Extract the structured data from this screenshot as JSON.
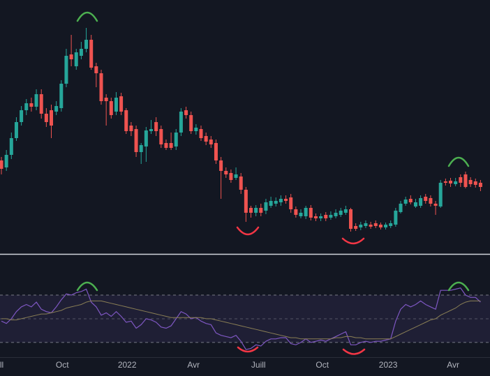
{
  "chart_data": [
    {
      "type": "candlestick",
      "xlim": [
        -0.28,
        97.9
      ],
      "ylim": [
        0,
        363
      ],
      "up_color": "#26a69a",
      "down_color": "#ef5350",
      "open": [
        133,
        123,
        141,
        165,
        188,
        205,
        215,
        210,
        228,
        200,
        205,
        203,
        208,
        243,
        285,
        268,
        283,
        293,
        306,
        268,
        258,
        223,
        218,
        203,
        225,
        205,
        183,
        178,
        145,
        153,
        175,
        188,
        178,
        158,
        158,
        153,
        173,
        205,
        198,
        175,
        178,
        168,
        163,
        158,
        133,
        118,
        115,
        108,
        110,
        91,
        65,
        58,
        65,
        61,
        68,
        71,
        73,
        78,
        80,
        63,
        53,
        53,
        65,
        53,
        50,
        55,
        51,
        53,
        55,
        58,
        63,
        39,
        37,
        39,
        41,
        43,
        41,
        37,
        39,
        41,
        59,
        71,
        78,
        67,
        68,
        81,
        79,
        71,
        67,
        103,
        104,
        99,
        109,
        113,
        105,
        103,
        101
      ],
      "high": [
        138,
        148,
        173,
        195,
        211,
        221,
        223,
        235,
        235,
        208,
        213,
        218,
        248,
        293,
        313,
        293,
        303,
        323,
        313,
        273,
        263,
        228,
        223,
        231,
        230,
        208,
        188,
        183,
        158,
        181,
        191,
        195,
        183,
        163,
        173,
        178,
        208,
        210,
        203,
        185,
        183,
        173,
        168,
        163,
        138,
        123,
        120,
        123,
        115,
        95,
        68,
        69,
        71,
        78,
        81,
        80,
        83,
        83,
        85,
        67,
        63,
        68,
        69,
        57,
        57,
        59,
        60,
        63,
        65,
        68,
        65,
        43,
        45,
        47,
        45,
        47,
        44,
        44,
        47,
        65,
        75,
        81,
        83,
        78,
        83,
        85,
        83,
        75,
        105,
        107,
        108,
        108,
        113,
        117,
        109,
        107,
        105
      ],
      "low": [
        113,
        118,
        135,
        161,
        183,
        198,
        203,
        205,
        193,
        181,
        165,
        198,
        203,
        238,
        268,
        263,
        278,
        288,
        263,
        238,
        213,
        183,
        193,
        198,
        198,
        171,
        168,
        138,
        128,
        131,
        171,
        168,
        151,
        148,
        148,
        148,
        168,
        193,
        171,
        170,
        161,
        155,
        151,
        128,
        78,
        108,
        101,
        105,
        85,
        45,
        51,
        53,
        53,
        56,
        65,
        67,
        68,
        71,
        58,
        51,
        50,
        49,
        47,
        46,
        46,
        46,
        48,
        50,
        52,
        55,
        31,
        32,
        33,
        36,
        35,
        36,
        34,
        34,
        36,
        38,
        57,
        68,
        70,
        65,
        65,
        71,
        67,
        55,
        65,
        97,
        95,
        96,
        95,
        93,
        95,
        94,
        89
      ],
      "close": [
        121,
        141,
        165,
        188,
        205,
        215,
        210,
        228,
        200,
        188,
        183,
        211,
        243,
        283,
        278,
        288,
        293,
        306,
        266,
        258,
        218,
        218,
        198,
        223,
        203,
        175,
        175,
        145,
        155,
        176,
        178,
        175,
        156,
        151,
        151,
        173,
        203,
        198,
        175,
        180,
        165,
        160,
        156,
        133,
        118,
        113,
        105,
        113,
        91,
        58,
        58,
        65,
        58,
        73,
        75,
        75,
        78,
        75,
        63,
        55,
        58,
        65,
        51,
        50,
        53,
        50,
        55,
        58,
        61,
        63,
        35,
        35,
        41,
        43,
        38,
        39,
        37,
        41,
        43,
        61,
        71,
        77,
        73,
        73,
        79,
        75,
        71,
        68,
        101,
        101,
        100,
        103,
        101,
        95,
        99,
        98,
        95
      ]
    },
    {
      "type": "line",
      "xlim": [
        -0.28,
        97.9
      ],
      "ylim": [
        17.6,
        104.1
      ],
      "bands": [
        30,
        70
      ],
      "midline": 50,
      "band_color": "#7e57c2",
      "series": [
        {
          "color": "#7e57c2",
          "values": [
            48,
            46,
            50,
            56,
            60,
            62,
            60,
            64,
            58,
            56,
            55,
            60,
            66,
            71,
            70,
            72,
            73,
            75,
            64,
            60,
            53,
            55,
            52,
            56,
            52,
            47,
            48,
            42,
            45,
            50,
            49,
            47,
            43,
            42,
            44,
            50,
            56,
            54,
            50,
            51,
            48,
            46,
            45,
            38,
            36,
            35,
            34,
            36,
            31,
            24,
            25,
            28,
            27,
            31,
            33,
            33,
            34,
            34,
            29,
            28,
            30,
            33,
            30,
            31,
            32,
            31,
            33,
            35,
            37,
            39,
            28,
            28,
            30,
            31,
            30,
            31,
            31,
            32,
            33,
            48,
            58,
            62,
            60,
            62,
            65,
            62,
            60,
            58,
            74,
            74,
            74,
            75,
            76,
            70,
            68,
            68,
            64
          ]
        },
        {
          "color": "#8a7f55",
          "values": [
            50,
            50,
            49,
            49,
            50,
            51,
            52,
            53,
            54,
            54,
            55,
            56,
            57,
            59,
            60,
            61,
            62,
            64,
            65,
            65,
            65,
            64,
            63,
            62,
            61,
            60,
            59,
            58,
            57,
            56,
            55,
            54,
            53,
            52,
            51,
            51,
            51,
            51,
            51,
            51,
            51,
            50,
            50,
            49,
            48,
            47,
            46,
            45,
            44,
            43,
            42,
            41,
            40,
            39,
            38,
            37,
            36,
            35,
            34,
            34,
            33,
            33,
            33,
            33,
            33,
            33,
            33,
            34,
            34,
            35,
            35,
            34,
            34,
            33,
            33,
            33,
            33,
            33,
            33,
            35,
            37,
            39,
            41,
            43,
            45,
            47,
            49,
            50,
            53,
            55,
            57,
            59,
            62,
            64,
            65,
            65,
            65
          ]
        }
      ],
      "xticks": [
        {
          "value": -1,
          "label": "Juill"
        },
        {
          "value": 12.2,
          "label": "Oct"
        },
        {
          "value": 25.2,
          "label": "2022"
        },
        {
          "value": 38.5,
          "label": "Avr"
        },
        {
          "value": 51.5,
          "label": "Juill"
        },
        {
          "value": 64.3,
          "label": "Oct"
        },
        {
          "value": 77.5,
          "label": "2023"
        },
        {
          "value": 90.5,
          "label": "Avr"
        }
      ]
    }
  ]
}
